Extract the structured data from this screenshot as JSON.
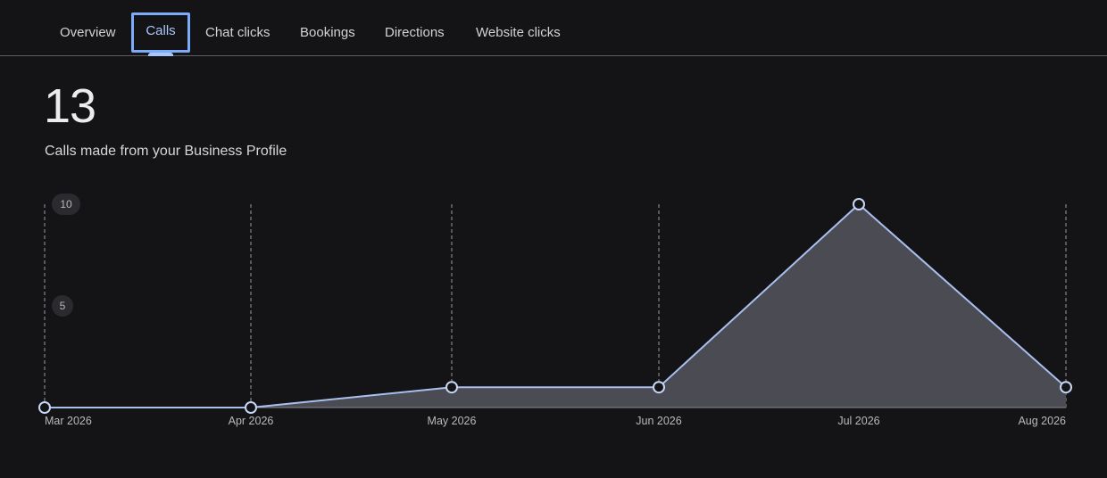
{
  "tabs": [
    {
      "label": "Overview",
      "active": false
    },
    {
      "label": "Calls",
      "active": true
    },
    {
      "label": "Chat clicks",
      "active": false
    },
    {
      "label": "Bookings",
      "active": false
    },
    {
      "label": "Directions",
      "active": false
    },
    {
      "label": "Website clicks",
      "active": false
    }
  ],
  "metric": {
    "value": "13",
    "label": "Calls made from your Business Profile"
  },
  "colors": {
    "accent": "#a8c7fa",
    "line": "#a8c0ee",
    "area": "#4a4b53",
    "background": "#141316"
  },
  "chart_data": {
    "type": "area",
    "categories": [
      "Mar 2026",
      "Apr 2026",
      "May 2026",
      "Jun 2026",
      "Jul 2026",
      "Aug 2026"
    ],
    "series": [
      {
        "values": [
          0,
          0,
          1,
          1,
          10,
          1
        ]
      }
    ],
    "yticks": [
      "10",
      "5"
    ],
    "ylim": [
      0,
      10
    ],
    "grid": "vertical dashed",
    "legend": "none"
  }
}
